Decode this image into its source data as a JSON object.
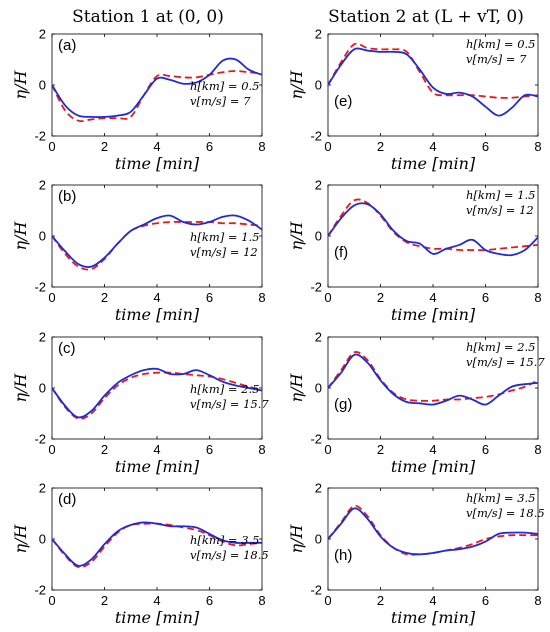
{
  "titles": {
    "left": "Station 1 at (0, 0)",
    "right": "Station 2 at (L + vT, 0)"
  },
  "chart_data": [
    {
      "type": "line",
      "panel": "(a)",
      "params": [
        "h[km] = 0.5",
        "v[m/s] = 7"
      ],
      "xlabel": "time [min]",
      "ylabel": "η/H",
      "xlim": [
        0,
        8
      ],
      "ylim": [
        -2,
        2
      ],
      "xticks": [
        0,
        2,
        4,
        6,
        8
      ],
      "yticks": [
        -2,
        0,
        2
      ],
      "series": [
        {
          "style": "solid-blue",
          "x": [
            0,
            0.5,
            1,
            1.5,
            2,
            2.5,
            3,
            3.5,
            4,
            4.5,
            5,
            5.5,
            6,
            6.5,
            7,
            7.5,
            8
          ],
          "y": [
            0,
            -0.8,
            -1.2,
            -1.25,
            -1.25,
            -1.2,
            -1.05,
            -0.4,
            0.25,
            0.2,
            0.05,
            0.1,
            0.4,
            0.95,
            1.0,
            0.6,
            0.4
          ]
        },
        {
          "style": "dashed-red",
          "x": [
            0,
            0.5,
            1,
            1.5,
            2,
            2.5,
            3,
            3.5,
            4,
            4.5,
            5,
            5.5,
            6,
            6.5,
            7,
            7.5,
            8
          ],
          "y": [
            0,
            -1.0,
            -1.4,
            -1.35,
            -1.3,
            -1.3,
            -1.25,
            -0.4,
            0.35,
            0.35,
            0.3,
            0.3,
            0.4,
            0.5,
            0.55,
            0.5,
            0.45
          ]
        }
      ]
    },
    {
      "type": "line",
      "panel": "(b)",
      "params": [
        "h[km] = 1.5",
        "v[m/s] = 12"
      ],
      "xlabel": "time [min]",
      "ylabel": "η/H",
      "xlim": [
        0,
        8
      ],
      "ylim": [
        -2,
        2
      ],
      "xticks": [
        0,
        2,
        4,
        6,
        8
      ],
      "yticks": [
        -2,
        0,
        2
      ],
      "series": [
        {
          "style": "solid-blue",
          "x": [
            0,
            0.5,
            1,
            1.5,
            2,
            2.5,
            3,
            3.5,
            4,
            4.5,
            5,
            5.5,
            6,
            6.5,
            7,
            7.5,
            8
          ],
          "y": [
            0,
            -0.6,
            -1.1,
            -1.2,
            -0.85,
            -0.3,
            0.2,
            0.45,
            0.7,
            0.8,
            0.55,
            0.45,
            0.55,
            0.75,
            0.8,
            0.6,
            0.25
          ]
        },
        {
          "style": "dashed-red",
          "x": [
            0,
            0.5,
            1,
            1.5,
            2,
            2.5,
            3,
            3.5,
            4,
            4.5,
            5,
            5.5,
            6,
            6.5,
            7,
            7.5,
            8
          ],
          "y": [
            0,
            -0.7,
            -1.2,
            -1.3,
            -0.9,
            -0.3,
            0.2,
            0.4,
            0.5,
            0.55,
            0.55,
            0.55,
            0.55,
            0.5,
            0.5,
            0.45,
            0.4
          ]
        }
      ]
    },
    {
      "type": "line",
      "panel": "(c)",
      "params": [
        "h[km] = 2.5",
        "v[m/s] = 15.7"
      ],
      "xlabel": "time [min]",
      "ylabel": "η/H",
      "xlim": [
        0,
        8
      ],
      "ylim": [
        -2,
        2
      ],
      "xticks": [
        0,
        2,
        4,
        6,
        8
      ],
      "yticks": [
        -2,
        0,
        2
      ],
      "series": [
        {
          "style": "solid-blue",
          "x": [
            0,
            0.5,
            1,
            1.5,
            2,
            2.5,
            3,
            3.5,
            4,
            4.5,
            5,
            5.5,
            6,
            6.5,
            7,
            7.5,
            8
          ],
          "y": [
            0,
            -0.7,
            -1.15,
            -0.9,
            -0.3,
            0.2,
            0.5,
            0.7,
            0.75,
            0.55,
            0.55,
            0.7,
            0.5,
            0.25,
            0.1,
            0,
            -0.1
          ]
        },
        {
          "style": "dashed-red",
          "x": [
            0,
            0.5,
            1,
            1.5,
            2,
            2.5,
            3,
            3.5,
            4,
            4.5,
            5,
            5.5,
            6,
            6.5,
            7,
            7.5,
            8
          ],
          "y": [
            0,
            -0.75,
            -1.2,
            -1.0,
            -0.4,
            0.1,
            0.4,
            0.55,
            0.6,
            0.6,
            0.55,
            0.5,
            0.45,
            0.35,
            0.2,
            0.05,
            -0.1
          ]
        }
      ]
    },
    {
      "type": "line",
      "panel": "(d)",
      "params": [
        "h[km] = 3.5",
        "v[m/s] = 18.5"
      ],
      "xlabel": "time [min]",
      "ylabel": "η/H",
      "xlim": [
        0,
        8
      ],
      "ylim": [
        -2,
        2
      ],
      "xticks": [
        0,
        2,
        4,
        6,
        8
      ],
      "yticks": [
        -2,
        0,
        2
      ],
      "series": [
        {
          "style": "solid-blue",
          "x": [
            0,
            0.5,
            1,
            1.5,
            2,
            2.5,
            3,
            3.5,
            4,
            4.5,
            5,
            5.5,
            6,
            6.5,
            7,
            7.5,
            8
          ],
          "y": [
            0,
            -0.6,
            -1.05,
            -0.8,
            -0.2,
            0.3,
            0.55,
            0.65,
            0.6,
            0.5,
            0.5,
            0.45,
            0.2,
            -0.05,
            -0.15,
            -0.15,
            -0.15
          ]
        },
        {
          "style": "dashed-red",
          "x": [
            0,
            0.5,
            1,
            1.5,
            2,
            2.5,
            3,
            3.5,
            4,
            4.5,
            5,
            5.5,
            6,
            6.5,
            7,
            7.5,
            8
          ],
          "y": [
            0,
            -0.65,
            -1.1,
            -0.9,
            -0.3,
            0.25,
            0.55,
            0.6,
            0.6,
            0.55,
            0.45,
            0.35,
            0.15,
            -0.1,
            -0.25,
            -0.2,
            -0.15
          ]
        }
      ]
    },
    {
      "type": "line",
      "panel": "(e)",
      "params": [
        "h[km] = 0.5",
        "v[m/s] = 7"
      ],
      "xlabel": "time [min]",
      "ylabel": "η/H",
      "xlim": [
        0,
        8
      ],
      "ylim": [
        -2,
        2
      ],
      "xticks": [
        0,
        2,
        4,
        6,
        8
      ],
      "yticks": [
        -2,
        0,
        2
      ],
      "series": [
        {
          "style": "solid-blue",
          "x": [
            0,
            0.5,
            1,
            1.5,
            2,
            2.5,
            3,
            3.5,
            4,
            4.5,
            5,
            5.5,
            6,
            6.5,
            7,
            7.5,
            8
          ],
          "y": [
            0,
            0.8,
            1.4,
            1.35,
            1.3,
            1.3,
            1.2,
            0.6,
            -0.1,
            -0.35,
            -0.3,
            -0.45,
            -0.85,
            -1.2,
            -0.9,
            -0.4,
            -0.45
          ]
        },
        {
          "style": "dashed-red",
          "x": [
            0,
            0.5,
            1,
            1.5,
            2,
            2.5,
            3,
            3.5,
            4,
            4.5,
            5,
            5.5,
            6,
            6.5,
            7,
            7.5,
            8
          ],
          "y": [
            0,
            0.9,
            1.6,
            1.45,
            1.4,
            1.4,
            1.3,
            0.5,
            -0.3,
            -0.4,
            -0.4,
            -0.4,
            -0.45,
            -0.5,
            -0.5,
            -0.45,
            -0.4
          ]
        }
      ]
    },
    {
      "type": "line",
      "panel": "(f)",
      "params": [
        "h[km] = 1.5",
        "v[m/s] = 12"
      ],
      "xlabel": "time [min]",
      "ylabel": "η/H",
      "xlim": [
        0,
        8
      ],
      "ylim": [
        -2,
        2
      ],
      "xticks": [
        0,
        2,
        4,
        6,
        8
      ],
      "yticks": [
        -2,
        0,
        2
      ],
      "series": [
        {
          "style": "solid-blue",
          "x": [
            0,
            0.5,
            1,
            1.5,
            2,
            2.5,
            3,
            3.5,
            4,
            4.5,
            5,
            5.5,
            6,
            6.5,
            7,
            7.5,
            8
          ],
          "y": [
            0,
            0.7,
            1.2,
            1.25,
            0.85,
            0.2,
            -0.2,
            -0.3,
            -0.7,
            -0.5,
            -0.35,
            -0.15,
            -0.55,
            -0.7,
            -0.75,
            -0.55,
            -0.05
          ]
        },
        {
          "style": "dashed-red",
          "x": [
            0,
            0.5,
            1,
            1.5,
            2,
            2.5,
            3,
            3.5,
            4,
            4.5,
            5,
            5.5,
            6,
            6.5,
            7,
            7.5,
            8
          ],
          "y": [
            0,
            0.8,
            1.4,
            1.3,
            0.8,
            0.15,
            -0.25,
            -0.4,
            -0.5,
            -0.5,
            -0.55,
            -0.55,
            -0.55,
            -0.5,
            -0.45,
            -0.4,
            -0.35
          ]
        }
      ]
    },
    {
      "type": "line",
      "panel": "(g)",
      "params": [
        "h[km] = 2.5",
        "v[m/s] = 15.7"
      ],
      "xlabel": "time [min]",
      "ylabel": "η/H",
      "xlim": [
        0,
        8
      ],
      "ylim": [
        -2,
        2
      ],
      "xticks": [
        0,
        2,
        4,
        6,
        8
      ],
      "yticks": [
        -2,
        0,
        2
      ],
      "series": [
        {
          "style": "solid-blue",
          "x": [
            0,
            0.5,
            1,
            1.5,
            2,
            2.5,
            3,
            3.5,
            4,
            4.5,
            5,
            5.5,
            6,
            6.5,
            7,
            7.5,
            8
          ],
          "y": [
            0,
            0.6,
            1.3,
            1.0,
            0.3,
            -0.25,
            -0.55,
            -0.6,
            -0.65,
            -0.5,
            -0.3,
            -0.45,
            -0.65,
            -0.3,
            0.05,
            0.15,
            0.2
          ]
        },
        {
          "style": "dashed-red",
          "x": [
            0,
            0.5,
            1,
            1.5,
            2,
            2.5,
            3,
            3.5,
            4,
            4.5,
            5,
            5.5,
            6,
            6.5,
            7,
            7.5,
            8
          ],
          "y": [
            0,
            0.7,
            1.4,
            1.1,
            0.35,
            -0.2,
            -0.45,
            -0.5,
            -0.5,
            -0.45,
            -0.45,
            -0.4,
            -0.35,
            -0.25,
            -0.1,
            0.05,
            0.3
          ]
        }
      ]
    },
    {
      "type": "line",
      "panel": "(h)",
      "params": [
        "h[km] = 3.5",
        "v[m/s] = 18.5"
      ],
      "xlabel": "time [min]",
      "ylabel": "η/H",
      "xlim": [
        0,
        8
      ],
      "ylim": [
        -2,
        2
      ],
      "xticks": [
        0,
        2,
        4,
        6,
        8
      ],
      "yticks": [
        -2,
        0,
        2
      ],
      "series": [
        {
          "style": "solid-blue",
          "x": [
            0,
            0.5,
            1,
            1.5,
            2,
            2.5,
            3,
            3.5,
            4,
            4.5,
            5,
            5.5,
            6,
            6.5,
            7,
            7.5,
            8
          ],
          "y": [
            0,
            0.6,
            1.2,
            0.8,
            0.1,
            -0.35,
            -0.55,
            -0.6,
            -0.55,
            -0.45,
            -0.4,
            -0.3,
            -0.1,
            0.2,
            0.25,
            0.25,
            0.2
          ]
        },
        {
          "style": "dashed-red",
          "x": [
            0,
            0.5,
            1,
            1.5,
            2,
            2.5,
            3,
            3.5,
            4,
            4.5,
            5,
            5.5,
            6,
            6.5,
            7,
            7.5,
            8
          ],
          "y": [
            0,
            0.65,
            1.3,
            0.9,
            0.15,
            -0.35,
            -0.6,
            -0.6,
            -0.55,
            -0.45,
            -0.35,
            -0.2,
            0,
            0.1,
            0.15,
            0.15,
            0.15
          ]
        }
      ]
    }
  ]
}
